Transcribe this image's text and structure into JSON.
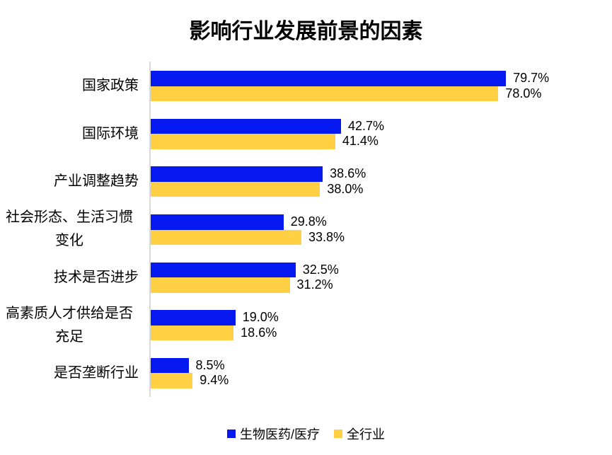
{
  "title": "影响行业发展前景的因素",
  "colors": {
    "series1": "#0519F0",
    "series2": "#FFD044",
    "axis_line": "#D9D9D9",
    "text": "#000000",
    "background": "#FFFFFF"
  },
  "legend": [
    {
      "label": "生物医药/医疗",
      "color_key": "series1"
    },
    {
      "label": "全行业",
      "color_key": "series2"
    }
  ],
  "chart_data": {
    "type": "bar",
    "orientation": "horizontal",
    "title": "影响行业发展前景的因素",
    "categories": [
      "国家政策",
      "国际环境",
      "产业调整趋势",
      "社会形态、生活习惯变化",
      "技术是否进步",
      "高素质人才供给是否充足",
      "是否垄断行业"
    ],
    "categories_display": [
      [
        "国家政策"
      ],
      [
        "国际环境"
      ],
      [
        "产业调整趋势"
      ],
      [
        "社会形态、生活习惯",
        "变化"
      ],
      [
        "技术是否进步"
      ],
      [
        "高素质人才供给是否",
        "充足"
      ],
      [
        "是否垄断行业"
      ]
    ],
    "series": [
      {
        "name": "生物医药/医疗",
        "values": [
          79.7,
          42.7,
          38.6,
          29.8,
          32.5,
          19.0,
          8.5
        ],
        "labels": [
          "79.7%",
          "42.7%",
          "38.6%",
          "29.8%",
          "32.5%",
          "19.0%",
          "8.5%"
        ]
      },
      {
        "name": "全行业",
        "values": [
          78.0,
          41.4,
          38.0,
          33.8,
          31.2,
          18.6,
          9.4
        ],
        "labels": [
          "78.0%",
          "41.4%",
          "38.0%",
          "33.8%",
          "31.2%",
          "18.6%",
          "9.4%"
        ]
      }
    ],
    "xlim": [
      0,
      100
    ],
    "x_axis_visible": false,
    "grid": false,
    "value_labels": true,
    "legend_position": "bottom"
  }
}
